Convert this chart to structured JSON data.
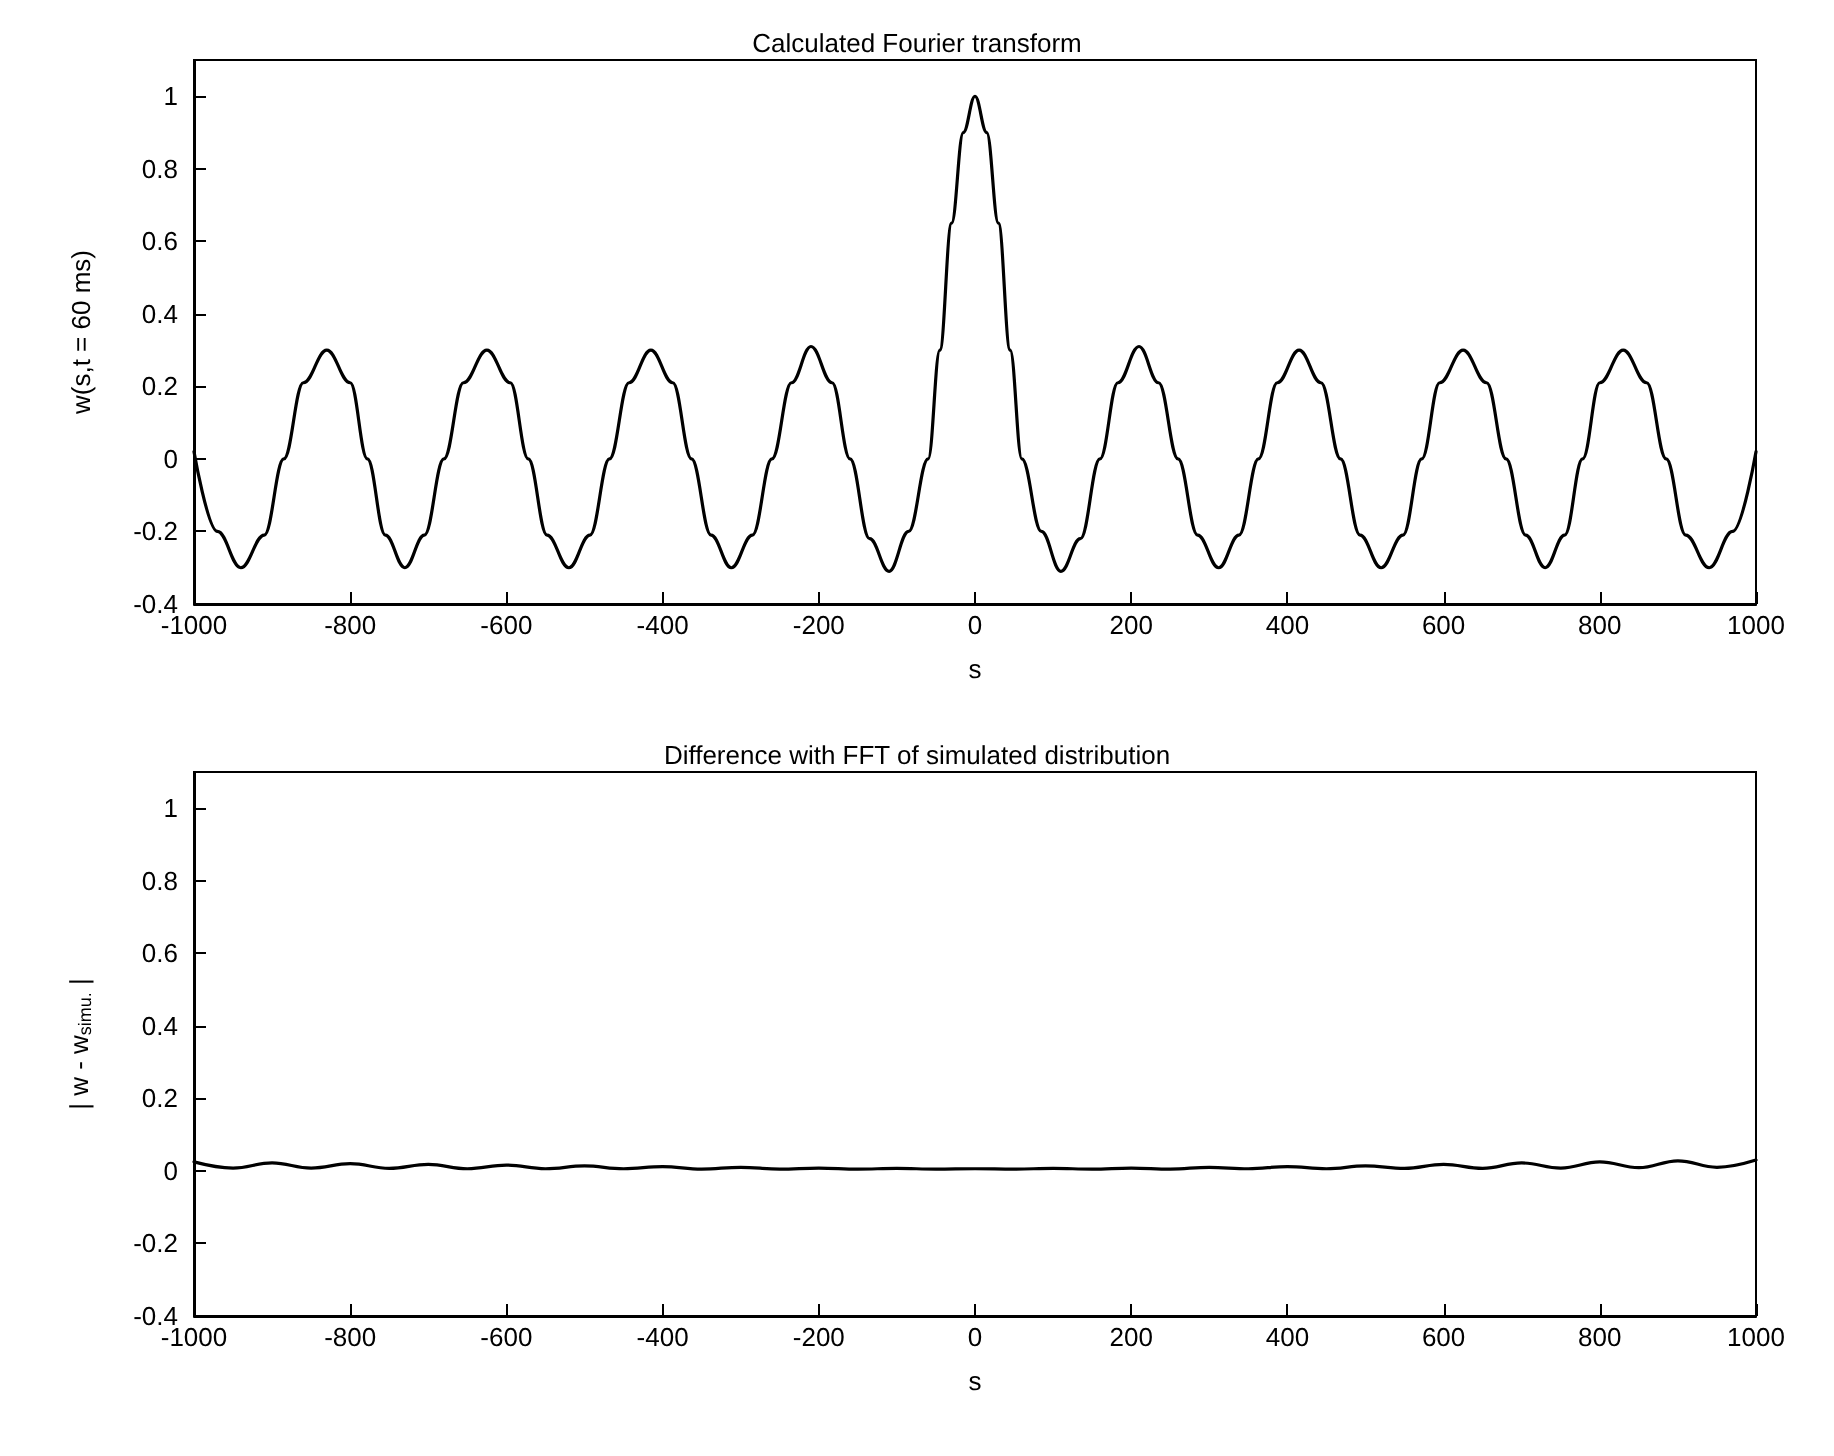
{
  "chart_data": [
    {
      "type": "line",
      "title": "Calculated Fourier transform",
      "xlabel": "s",
      "ylabel": "w(s,t = 60 ms)",
      "xlim": [
        -1000,
        1000
      ],
      "ylim": [
        -0.4,
        1.1
      ],
      "xticks": [
        -1000,
        -800,
        -600,
        -400,
        -200,
        0,
        200,
        400,
        600,
        800,
        1000
      ],
      "yticks": [
        -0.4,
        -0.2,
        0,
        0.2,
        0.4,
        0.6,
        0.8,
        1
      ],
      "marker": "none",
      "line_style": "solid",
      "series": [
        {
          "color": "#000000",
          "x": [
            -1000,
            -970,
            -940,
            -910,
            -885,
            -860,
            -830,
            -800,
            -778,
            -755,
            -730,
            -705,
            -680,
            -655,
            -625,
            -595,
            -572,
            -548,
            -520,
            -493,
            -468,
            -443,
            -415,
            -387,
            -363,
            -338,
            -312,
            -285,
            -260,
            -235,
            -210,
            -183,
            -160,
            -135,
            -110,
            -85,
            -60,
            -45,
            -30,
            -15,
            0,
            15,
            30,
            45,
            60,
            85,
            110,
            135,
            160,
            183,
            210,
            235,
            260,
            285,
            312,
            338,
            363,
            387,
            415,
            443,
            468,
            493,
            520,
            548,
            572,
            595,
            625,
            655,
            680,
            705,
            730,
            755,
            778,
            800,
            830,
            860,
            885,
            910,
            940,
            970,
            1000
          ],
          "values": [
            0.02,
            -0.2,
            -0.3,
            -0.21,
            0,
            0.21,
            0.3,
            0.21,
            0,
            -0.21,
            -0.3,
            -0.21,
            0,
            0.21,
            0.3,
            0.21,
            0,
            -0.21,
            -0.3,
            -0.21,
            0,
            0.21,
            0.3,
            0.21,
            0,
            -0.21,
            -0.3,
            -0.21,
            0,
            0.21,
            0.31,
            0.21,
            0,
            -0.22,
            -0.31,
            -0.2,
            0,
            0.3,
            0.65,
            0.9,
            1,
            0.9,
            0.65,
            0.3,
            0,
            -0.2,
            -0.31,
            -0.22,
            0,
            0.21,
            0.31,
            0.21,
            0,
            -0.21,
            -0.3,
            -0.21,
            0,
            0.21,
            0.3,
            0.21,
            0,
            -0.21,
            -0.3,
            -0.21,
            0,
            0.21,
            0.3,
            0.21,
            0,
            -0.21,
            -0.3,
            -0.21,
            0,
            0.21,
            0.3,
            0.21,
            0,
            -0.21,
            -0.3,
            -0.2,
            0.02
          ]
        }
      ]
    },
    {
      "type": "line",
      "title": "Difference with FFT of simulated distribution",
      "xlabel": "s",
      "ylabel": "| w - w$_{simu.}$ |",
      "xlim": [
        -1000,
        1000
      ],
      "ylim": [
        -0.4,
        1.1
      ],
      "xticks": [
        -1000,
        -800,
        -600,
        -400,
        -200,
        0,
        200,
        400,
        600,
        800,
        1000
      ],
      "yticks": [
        -0.4,
        -0.2,
        0,
        0.2,
        0.4,
        0.6,
        0.8,
        1
      ],
      "marker": "none",
      "line_style": "solid",
      "series": [
        {
          "color": "#000000",
          "x": [
            -1000,
            -950,
            -900,
            -850,
            -800,
            -750,
            -700,
            -650,
            -600,
            -550,
            -500,
            -450,
            -400,
            -350,
            -300,
            -250,
            -200,
            -150,
            -100,
            -50,
            0,
            50,
            100,
            150,
            200,
            250,
            300,
            350,
            400,
            450,
            500,
            550,
            600,
            650,
            700,
            750,
            800,
            850,
            900,
            950,
            1000
          ],
          "values": [
            0.025,
            0.008,
            0.022,
            0.008,
            0.02,
            0.007,
            0.018,
            0.006,
            0.016,
            0.006,
            0.014,
            0.006,
            0.012,
            0.005,
            0.01,
            0.005,
            0.008,
            0.005,
            0.007,
            0.005,
            0.006,
            0.005,
            0.007,
            0.005,
            0.008,
            0.005,
            0.01,
            0.006,
            0.012,
            0.006,
            0.014,
            0.007,
            0.018,
            0.007,
            0.022,
            0.008,
            0.025,
            0.009,
            0.028,
            0.01,
            0.03
          ]
        }
      ]
    }
  ]
}
